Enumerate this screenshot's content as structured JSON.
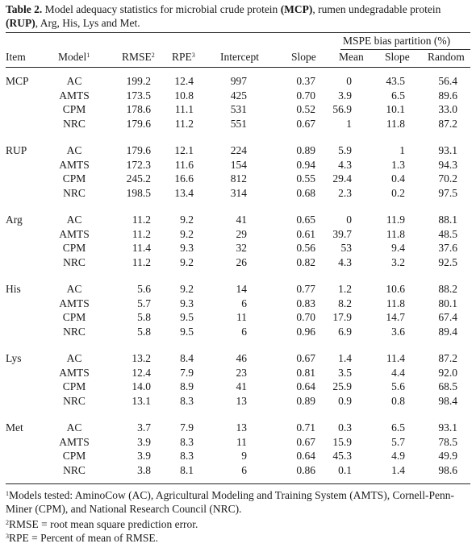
{
  "caption": {
    "label": "Table 2.",
    "pre": "Model adequacy statistics for microbial crude protein ",
    "b1": "(MCP)",
    "mid": ", rumen undegradable protein ",
    "b2": "(RUP)",
    "post": ", Arg, His, Lys and Met."
  },
  "header": {
    "group": "MSPE bias partition (%)",
    "item": "Item",
    "model": "Model",
    "model_sup": "1",
    "rmse": "RMSE",
    "rmse_sup": "2",
    "rpe": "RPE",
    "rpe_sup": "3",
    "intercept": "Intercept",
    "slope": "Slope",
    "mean": "Mean",
    "slope2": "Slope",
    "random": "Random"
  },
  "groups": [
    {
      "item": "MCP",
      "rows": [
        {
          "model": "AC",
          "rmse": "199.2",
          "rpe": "12.4",
          "intercept": "997",
          "slope": "0.37",
          "mean": "0",
          "slope2": "43.5",
          "random": "56.4"
        },
        {
          "model": "AMTS",
          "rmse": "173.5",
          "rpe": "10.8",
          "intercept": "425",
          "slope": "0.70",
          "mean": "3.9",
          "slope2": "6.5",
          "random": "89.6"
        },
        {
          "model": "CPM",
          "rmse": "178.6",
          "rpe": "11.1",
          "intercept": "531",
          "slope": "0.52",
          "mean": "56.9",
          "slope2": "10.1",
          "random": "33.0"
        },
        {
          "model": "NRC",
          "rmse": "179.6",
          "rpe": "11.2",
          "intercept": "551",
          "slope": "0.67",
          "mean": "1",
          "slope2": "11.8",
          "random": "87.2"
        }
      ]
    },
    {
      "item": "RUP",
      "rows": [
        {
          "model": "AC",
          "rmse": "179.6",
          "rpe": "12.1",
          "intercept": "224",
          "slope": "0.89",
          "mean": "5.9",
          "slope2": "1",
          "random": "93.1"
        },
        {
          "model": "AMTS",
          "rmse": "172.3",
          "rpe": "11.6",
          "intercept": "154",
          "slope": "0.94",
          "mean": "4.3",
          "slope2": "1.3",
          "random": "94.3"
        },
        {
          "model": "CPM",
          "rmse": "245.2",
          "rpe": "16.6",
          "intercept": "812",
          "slope": "0.55",
          "mean": "29.4",
          "slope2": "0.4",
          "random": "70.2"
        },
        {
          "model": "NRC",
          "rmse": "198.5",
          "rpe": "13.4",
          "intercept": "314",
          "slope": "0.68",
          "mean": "2.3",
          "slope2": "0.2",
          "random": "97.5"
        }
      ]
    },
    {
      "item": "Arg",
      "rows": [
        {
          "model": "AC",
          "rmse": "11.2",
          "rpe": "9.2",
          "intercept": "41",
          "slope": "0.65",
          "mean": "0",
          "slope2": "11.9",
          "random": "88.1"
        },
        {
          "model": "AMTS",
          "rmse": "11.2",
          "rpe": "9.2",
          "intercept": "29",
          "slope": "0.61",
          "mean": "39.7",
          "slope2": "11.8",
          "random": "48.5"
        },
        {
          "model": "CPM",
          "rmse": "11.4",
          "rpe": "9.3",
          "intercept": "32",
          "slope": "0.56",
          "mean": "53",
          "slope2": "9.4",
          "random": "37.6"
        },
        {
          "model": "NRC",
          "rmse": "11.2",
          "rpe": "9.2",
          "intercept": "26",
          "slope": "0.82",
          "mean": "4.3",
          "slope2": "3.2",
          "random": "92.5"
        }
      ]
    },
    {
      "item": "His",
      "rows": [
        {
          "model": "AC",
          "rmse": "5.6",
          "rpe": "9.2",
          "intercept": "14",
          "slope": "0.77",
          "mean": "1.2",
          "slope2": "10.6",
          "random": "88.2"
        },
        {
          "model": "AMTS",
          "rmse": "5.7",
          "rpe": "9.3",
          "intercept": "6",
          "slope": "0.83",
          "mean": "8.2",
          "slope2": "11.8",
          "random": "80.1"
        },
        {
          "model": "CPM",
          "rmse": "5.8",
          "rpe": "9.5",
          "intercept": "11",
          "slope": "0.70",
          "mean": "17.9",
          "slope2": "14.7",
          "random": "67.4"
        },
        {
          "model": "NRC",
          "rmse": "5.8",
          "rpe": "9.5",
          "intercept": "6",
          "slope": "0.96",
          "mean": "6.9",
          "slope2": "3.6",
          "random": "89.4"
        }
      ]
    },
    {
      "item": "Lys",
      "rows": [
        {
          "model": "AC",
          "rmse": "13.2",
          "rpe": "8.4",
          "intercept": "46",
          "slope": "0.67",
          "mean": "1.4",
          "slope2": "11.4",
          "random": "87.2"
        },
        {
          "model": "AMTS",
          "rmse": "12.4",
          "rpe": "7.9",
          "intercept": "23",
          "slope": "0.81",
          "mean": "3.5",
          "slope2": "4.4",
          "random": "92.0"
        },
        {
          "model": "CPM",
          "rmse": "14.0",
          "rpe": "8.9",
          "intercept": "41",
          "slope": "0.64",
          "mean": "25.9",
          "slope2": "5.6",
          "random": "68.5"
        },
        {
          "model": "NRC",
          "rmse": "13.1",
          "rpe": "8.3",
          "intercept": "13",
          "slope": "0.89",
          "mean": "0.9",
          "slope2": "0.8",
          "random": "98.4"
        }
      ]
    },
    {
      "item": "Met",
      "rows": [
        {
          "model": "AC",
          "rmse": "3.7",
          "rpe": "7.9",
          "intercept": "13",
          "slope": "0.71",
          "mean": "0.3",
          "slope2": "6.5",
          "random": "93.1"
        },
        {
          "model": "AMTS",
          "rmse": "3.9",
          "rpe": "8.3",
          "intercept": "11",
          "slope": "0.67",
          "mean": "15.9",
          "slope2": "5.7",
          "random": "78.5"
        },
        {
          "model": "CPM",
          "rmse": "3.9",
          "rpe": "8.3",
          "intercept": "9",
          "slope": "0.64",
          "mean": "45.3",
          "slope2": "4.9",
          "random": "49.9"
        },
        {
          "model": "NRC",
          "rmse": "3.8",
          "rpe": "8.1",
          "intercept": "6",
          "slope": "0.86",
          "mean": "0.1",
          "slope2": "1.4",
          "random": "98.6"
        }
      ]
    }
  ],
  "footnotes": [
    {
      "sup": "1",
      "text": "Models tested: AminoCow (AC), Agricultural Modeling and Training System (AMTS), Cornell-Penn-Miner (CPM), and National Research Council (NRC)."
    },
    {
      "sup": "2",
      "text": "RMSE = root mean square prediction error."
    },
    {
      "sup": "3",
      "text": "RPE = Percent of mean of RMSE."
    }
  ]
}
